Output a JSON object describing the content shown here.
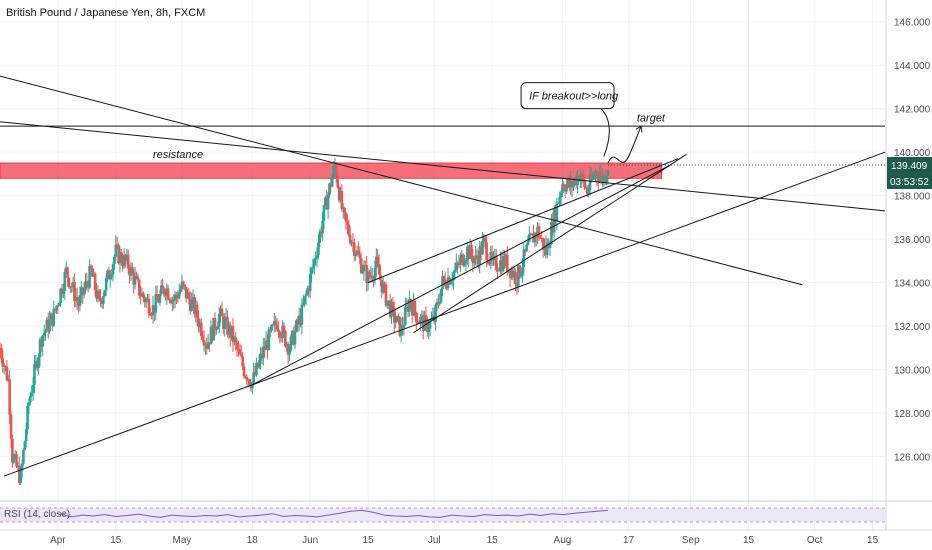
{
  "header": {
    "symbol_title": "British Pound / Japanese Yen, 8h, FXCM"
  },
  "rsi": {
    "label": "RSI (14, close)"
  },
  "colors": {
    "up": "#26a69a",
    "down": "#ef5350",
    "zone_fill": "#f23645",
    "price_badge": "#1e5a4c",
    "rsi_line": "#7e57c2",
    "rsi_band": "#ede7f6",
    "line": "#131722"
  },
  "chart_data": {
    "type": "candlestick",
    "title": "British Pound / Japanese Yen, 8h, FXCM",
    "ylim": [
      124.0,
      147.0
    ],
    "y_ticks": [
      {
        "value": 146,
        "label": "146.000"
      },
      {
        "value": 144,
        "label": "144.000"
      },
      {
        "value": 142,
        "label": "142.000"
      },
      {
        "value": 140,
        "label": "140.000"
      },
      {
        "value": 138,
        "label": "138.000"
      },
      {
        "value": 136,
        "label": "136.000"
      },
      {
        "value": 134,
        "label": "134.000"
      },
      {
        "value": 132,
        "label": "132.000"
      },
      {
        "value": 130,
        "label": "130.000"
      },
      {
        "value": 128,
        "label": "128.000"
      },
      {
        "value": 126,
        "label": "126.000"
      }
    ],
    "x_ticks": [
      {
        "date": "2020-04-01",
        "label": "Apr"
      },
      {
        "date": "2020-04-15",
        "label": "15"
      },
      {
        "date": "2020-05-01",
        "label": "May"
      },
      {
        "date": "2020-05-18",
        "label": "18"
      },
      {
        "date": "2020-06-01",
        "label": "Jun"
      },
      {
        "date": "2020-06-15",
        "label": "15"
      },
      {
        "date": "2020-07-01",
        "label": "Jul"
      },
      {
        "date": "2020-07-15",
        "label": "15"
      },
      {
        "date": "2020-08-01",
        "label": "Aug"
      },
      {
        "date": "2020-08-17",
        "label": "17"
      },
      {
        "date": "2020-09-01",
        "label": "Sep"
      },
      {
        "date": "2020-09-15",
        "label": "15"
      },
      {
        "date": "2020-10-01",
        "label": "Oct"
      },
      {
        "date": "2020-10-15",
        "label": "15"
      }
    ],
    "x_range": [
      "2020-03-18",
      "2020-10-18"
    ],
    "candles_path": [
      [
        "2020-03-18",
        131.0
      ],
      [
        "2020-03-20",
        129.5
      ],
      [
        "2020-03-21",
        126.0
      ],
      [
        "2020-03-23",
        125.0
      ],
      [
        "2020-03-25",
        128.5
      ],
      [
        "2020-03-28",
        131.5
      ],
      [
        "2020-03-31",
        132.5
      ],
      [
        "2020-04-03",
        134.5
      ],
      [
        "2020-04-06",
        133.0
      ],
      [
        "2020-04-09",
        134.5
      ],
      [
        "2020-04-11",
        133.0
      ],
      [
        "2020-04-15",
        135.4
      ],
      [
        "2020-04-18",
        134.8
      ],
      [
        "2020-04-21",
        133.5
      ],
      [
        "2020-04-24",
        132.8
      ],
      [
        "2020-04-27",
        133.8
      ],
      [
        "2020-04-29",
        133.2
      ],
      [
        "2020-05-01",
        133.8
      ],
      [
        "2020-05-04",
        132.8
      ],
      [
        "2020-05-07",
        131.2
      ],
      [
        "2020-05-10",
        132.5
      ],
      [
        "2020-05-13",
        131.6
      ],
      [
        "2020-05-16",
        130.0
      ],
      [
        "2020-05-18",
        129.4
      ],
      [
        "2020-05-21",
        131.0
      ],
      [
        "2020-05-24",
        132.2
      ],
      [
        "2020-05-27",
        131.0
      ],
      [
        "2020-05-30",
        132.6
      ],
      [
        "2020-06-02",
        135.0
      ],
      [
        "2020-06-05",
        137.8
      ],
      [
        "2020-06-07",
        139.4
      ],
      [
        "2020-06-09",
        137.0
      ],
      [
        "2020-06-11",
        136.0
      ],
      [
        "2020-06-13",
        135.0
      ],
      [
        "2020-06-15",
        134.2
      ],
      [
        "2020-06-17",
        134.8
      ],
      [
        "2020-06-19",
        133.5
      ],
      [
        "2020-06-21",
        132.5
      ],
      [
        "2020-06-23",
        131.8
      ],
      [
        "2020-06-25",
        133.2
      ],
      [
        "2020-06-27",
        132.4
      ],
      [
        "2020-06-29",
        132.0
      ],
      [
        "2020-07-01",
        132.3
      ],
      [
        "2020-07-03",
        134.0
      ],
      [
        "2020-07-06",
        134.5
      ],
      [
        "2020-07-09",
        135.5
      ],
      [
        "2020-07-11",
        135.0
      ],
      [
        "2020-07-13",
        135.8
      ],
      [
        "2020-07-15",
        134.8
      ],
      [
        "2020-07-18",
        135.0
      ],
      [
        "2020-07-21",
        134.2
      ],
      [
        "2020-07-24",
        135.8
      ],
      [
        "2020-07-26",
        136.4
      ],
      [
        "2020-07-28",
        135.4
      ],
      [
        "2020-07-30",
        137.0
      ],
      [
        "2020-08-01",
        138.6
      ],
      [
        "2020-08-03",
        138.4
      ],
      [
        "2020-08-05",
        139.0
      ],
      [
        "2020-08-07",
        138.2
      ],
      [
        "2020-08-09",
        139.1
      ],
      [
        "2020-08-11",
        138.8
      ],
      [
        "2020-08-12",
        139.409
      ]
    ],
    "last_price": {
      "value": 139.409,
      "label": "139.409",
      "countdown": "03:53:52"
    },
    "resistance_zone": {
      "from": 138.8,
      "to": 139.5,
      "label": "resistance"
    },
    "target_level": 141.2,
    "trendlines": [
      {
        "name": "downtrend-line-1",
        "from": [
          "2020-03-18",
          143.5
        ],
        "to": [
          "2020-09-28",
          133.9
        ]
      },
      {
        "name": "downtrend-line-2",
        "from": [
          "2020-03-18",
          141.4
        ],
        "to": [
          "2020-10-18",
          137.3
        ]
      },
      {
        "name": "long-term-support-line",
        "from": [
          "2020-03-19",
          125.1
        ],
        "to": [
          "2020-10-18",
          140.0
        ]
      },
      {
        "name": "rising-channel-lower",
        "from": [
          "2020-06-26",
          131.7
        ],
        "to": [
          "2020-08-31",
          139.9
        ]
      },
      {
        "name": "rising-channel-upper",
        "from": [
          "2020-06-15",
          134.0
        ],
        "to": [
          "2020-08-29",
          139.7
        ]
      },
      {
        "name": "may-support-line",
        "from": [
          "2020-05-18",
          129.3
        ],
        "to": [
          "2020-08-27",
          139.4
        ]
      }
    ],
    "annotations": [
      {
        "name": "breakout-callout",
        "text": "IF breakout>>long"
      },
      {
        "name": "target-label",
        "text": "target"
      },
      {
        "name": "resistance-label",
        "text": "resistance"
      }
    ],
    "rsi_series": [
      55,
      48,
      52,
      50,
      53,
      49,
      51,
      54,
      50,
      47,
      52,
      50,
      49,
      51,
      50,
      53,
      48,
      50,
      52,
      55,
      49,
      51,
      50,
      48,
      52,
      56,
      60,
      62,
      58,
      52,
      50,
      49,
      51,
      48,
      47,
      52,
      50,
      49,
      53,
      51,
      52,
      50,
      54,
      51,
      55,
      53,
      56,
      58,
      60,
      62
    ]
  }
}
